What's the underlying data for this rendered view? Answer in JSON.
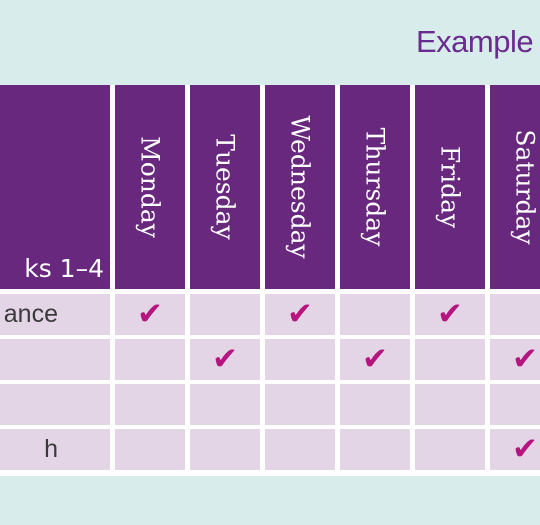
{
  "page": {
    "title": "Example"
  },
  "table": {
    "corner_label": "ks 1–4",
    "days": [
      "Monday",
      "Tuesday",
      "Wednesday",
      "Thursday",
      "Friday",
      "Saturday"
    ],
    "rows": [
      {
        "label": "ance",
        "checks": [
          true,
          false,
          true,
          false,
          true,
          false
        ]
      },
      {
        "label": "",
        "checks": [
          false,
          true,
          false,
          true,
          false,
          true
        ]
      },
      {
        "label": "",
        "checks": [
          false,
          false,
          false,
          false,
          false,
          false
        ]
      },
      {
        "label": "h",
        "checks": [
          false,
          false,
          false,
          false,
          false,
          true
        ]
      }
    ],
    "check_glyph": "✔"
  },
  "colors": {
    "background": "#d8eceb",
    "header": "#67287d",
    "cell": "#e3d5e6",
    "check": "#b5157e",
    "title": "#6a2c8e"
  }
}
